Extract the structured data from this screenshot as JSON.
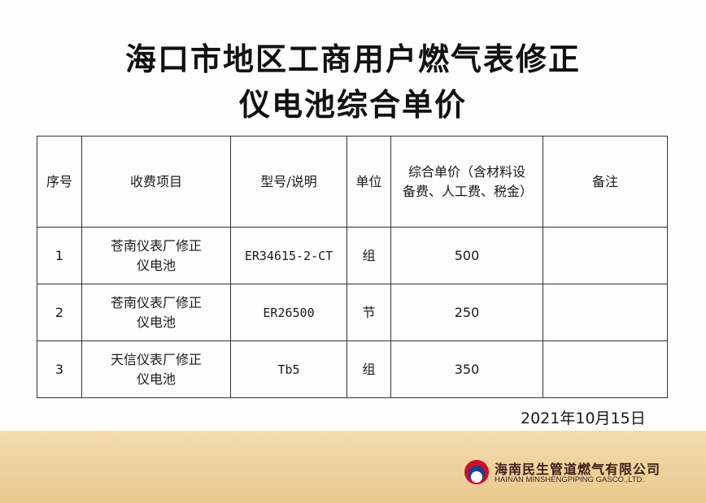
{
  "title_line1": "海口市地区工商用户燃气表修正",
  "title_line2": "仪电池综合单价",
  "table": {
    "headers": [
      "序号",
      "收费项目",
      "型号/说明",
      "单位",
      "综合单价（含材料设备费、人工费、税金）",
      "备注"
    ],
    "rows": [
      {
        "no": "1",
        "item_line1": "苍南仪表厂修正",
        "item_line2": "仪电池",
        "model": "ER34615-2-CT",
        "unit": "组",
        "price": "500",
        "remark": ""
      },
      {
        "no": "2",
        "item_line1": "苍南仪表厂修正",
        "item_line2": "仪电池",
        "model": "ER26500",
        "unit": "节",
        "price": "250",
        "remark": ""
      },
      {
        "no": "3",
        "item_line1": "天信仪表厂修正",
        "item_line2": "仪电池",
        "model": "Tb5",
        "unit": "组",
        "price": "350",
        "remark": ""
      }
    ]
  },
  "date": "2021年10月15日",
  "footer": {
    "company_cn": "海南民生管道燃气有限公司",
    "company_en": "HAINAN MINSHENGPIPING GASCO.,LTD.",
    "logo_colors": [
      "#c8102e",
      "#1b3f8b",
      "#ffffff"
    ]
  }
}
